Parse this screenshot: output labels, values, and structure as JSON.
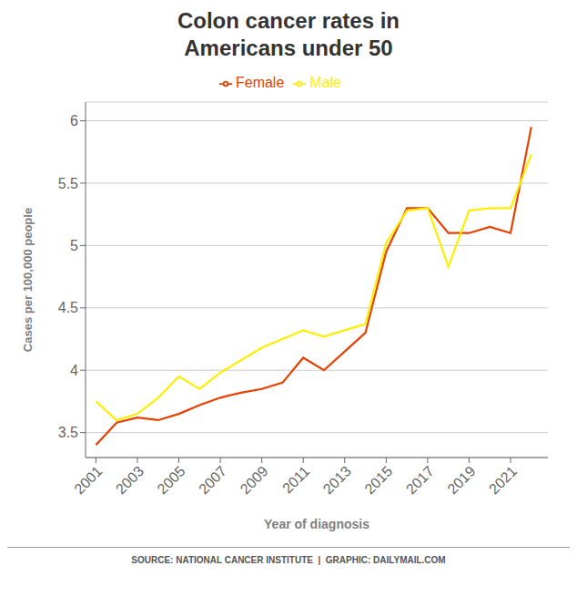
{
  "chart_data": {
    "type": "line",
    "title": "Colon cancer rates in\nAmericans under 50",
    "x_label": "Year of diagnosis",
    "y_label": "Cases per 100,000 people",
    "annotations": [
      "SOURCE: NATIONAL CANCER INSTITUTE  |  GRAPHIC: DAILYMAIL.COM"
    ],
    "x": [
      2001,
      2002,
      2003,
      2004,
      2005,
      2006,
      2007,
      2008,
      2009,
      2010,
      2011,
      2012,
      2013,
      2014,
      2015,
      2016,
      2017,
      2018,
      2019,
      2020,
      2021,
      2022
    ],
    "series": [
      {
        "name": "Female",
        "color": "#e84000",
        "values": [
          3.4,
          3.58,
          3.62,
          3.6,
          3.65,
          3.72,
          3.78,
          3.82,
          3.85,
          3.9,
          4.1,
          4.0,
          4.15,
          4.3,
          4.95,
          5.3,
          5.3,
          5.1,
          5.1,
          5.15,
          5.1,
          5.95
        ]
      },
      {
        "name": "Male",
        "color": "#ffee00",
        "values": [
          3.75,
          3.6,
          3.65,
          3.78,
          3.95,
          3.85,
          3.98,
          4.08,
          4.18,
          4.25,
          4.32,
          4.27,
          4.32,
          4.37,
          5.02,
          5.28,
          5.3,
          4.83,
          5.28,
          5.3,
          5.3,
          5.73
        ]
      }
    ],
    "xlim": [
      2000.5,
      2022.8
    ],
    "xticks": [
      2001,
      2003,
      2005,
      2007,
      2009,
      2011,
      2013,
      2015,
      2017,
      2019,
      2021
    ],
    "ylim": [
      3.3,
      6.15
    ],
    "yticks": [
      3.5,
      4,
      4.5,
      5,
      5.5,
      6
    ],
    "grid": true,
    "legend": "top"
  }
}
